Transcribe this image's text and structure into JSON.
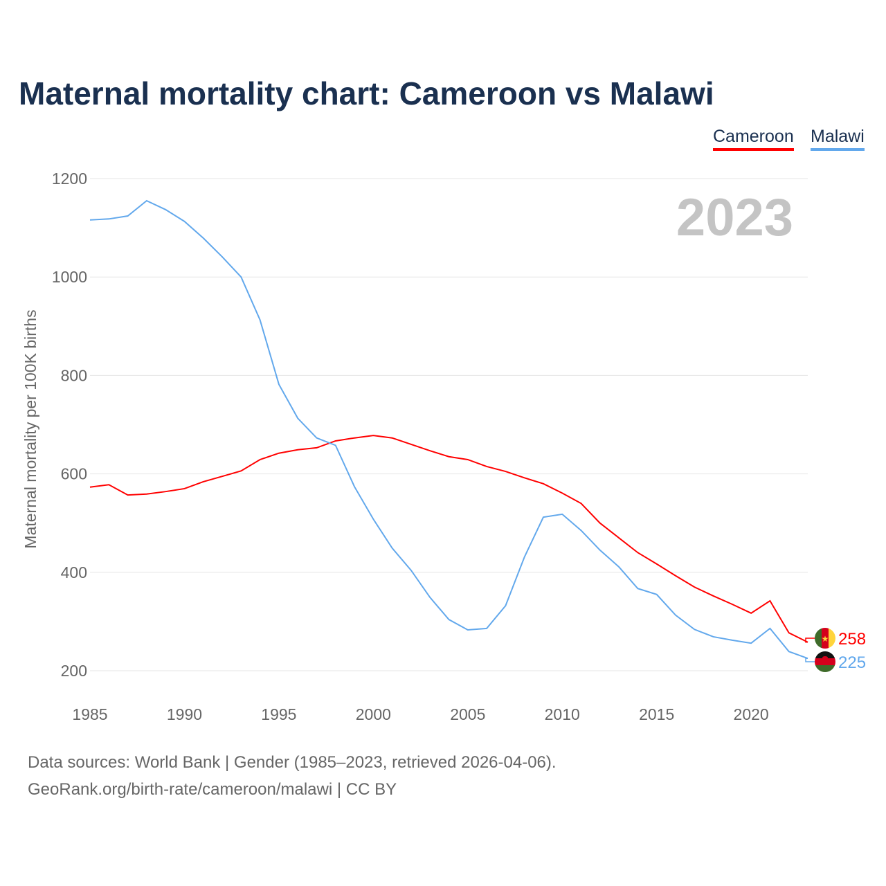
{
  "title": "Maternal mortality chart: Cameroon vs Malawi",
  "footer": {
    "line1": "Data sources: World Bank | Gender (1985–2023, retrieved 2026-04-06).",
    "line2": "GeoRank.org/birth-rate/cameroon/malawi | CC BY"
  },
  "chart_data": {
    "type": "line",
    "title": "Maternal mortality chart: Cameroon vs Malawi",
    "ylabel": "Maternal mortality per 100K births",
    "xlabel": "",
    "year_label": "2023",
    "xlim": [
      1985,
      2023
    ],
    "ylim": [
      200,
      1200
    ],
    "xticks": [
      "1985",
      "1990",
      "1995",
      "2000",
      "2005",
      "2010",
      "2015",
      "2020"
    ],
    "yticks": [
      "200",
      "400",
      "600",
      "800",
      "1000",
      "1200"
    ],
    "grid": true,
    "legend": "top-right",
    "x": [
      1985,
      1986,
      1987,
      1988,
      1989,
      1990,
      1991,
      1992,
      1993,
      1994,
      1995,
      1996,
      1997,
      1998,
      1999,
      2000,
      2001,
      2002,
      2003,
      2004,
      2005,
      2006,
      2007,
      2008,
      2009,
      2010,
      2011,
      2012,
      2013,
      2014,
      2015,
      2016,
      2017,
      2018,
      2019,
      2020,
      2021,
      2022,
      2023
    ],
    "series": [
      {
        "name": "Cameroon",
        "color": "#ff0000",
        "end_label": "258",
        "values": [
          573,
          578,
          557,
          559,
          564,
          570,
          584,
          595,
          606,
          629,
          642,
          649,
          653,
          667,
          673,
          678,
          673,
          660,
          647,
          635,
          629,
          615,
          605,
          592,
          580,
          561,
          540,
          500,
          470,
          440,
          417,
          393,
          370,
          352,
          335,
          317,
          342,
          277,
          258
        ]
      },
      {
        "name": "Malawi",
        "color": "#62a8ec",
        "end_label": "225",
        "values": [
          1116,
          1118,
          1124,
          1155,
          1137,
          1113,
          1079,
          1041,
          1000,
          913,
          782,
          713,
          673,
          658,
          574,
          508,
          449,
          404,
          349,
          304,
          283,
          286,
          332,
          431,
          512,
          518,
          485,
          445,
          411,
          367,
          355,
          313,
          284,
          269,
          262,
          256,
          286,
          239,
          225
        ]
      }
    ]
  }
}
